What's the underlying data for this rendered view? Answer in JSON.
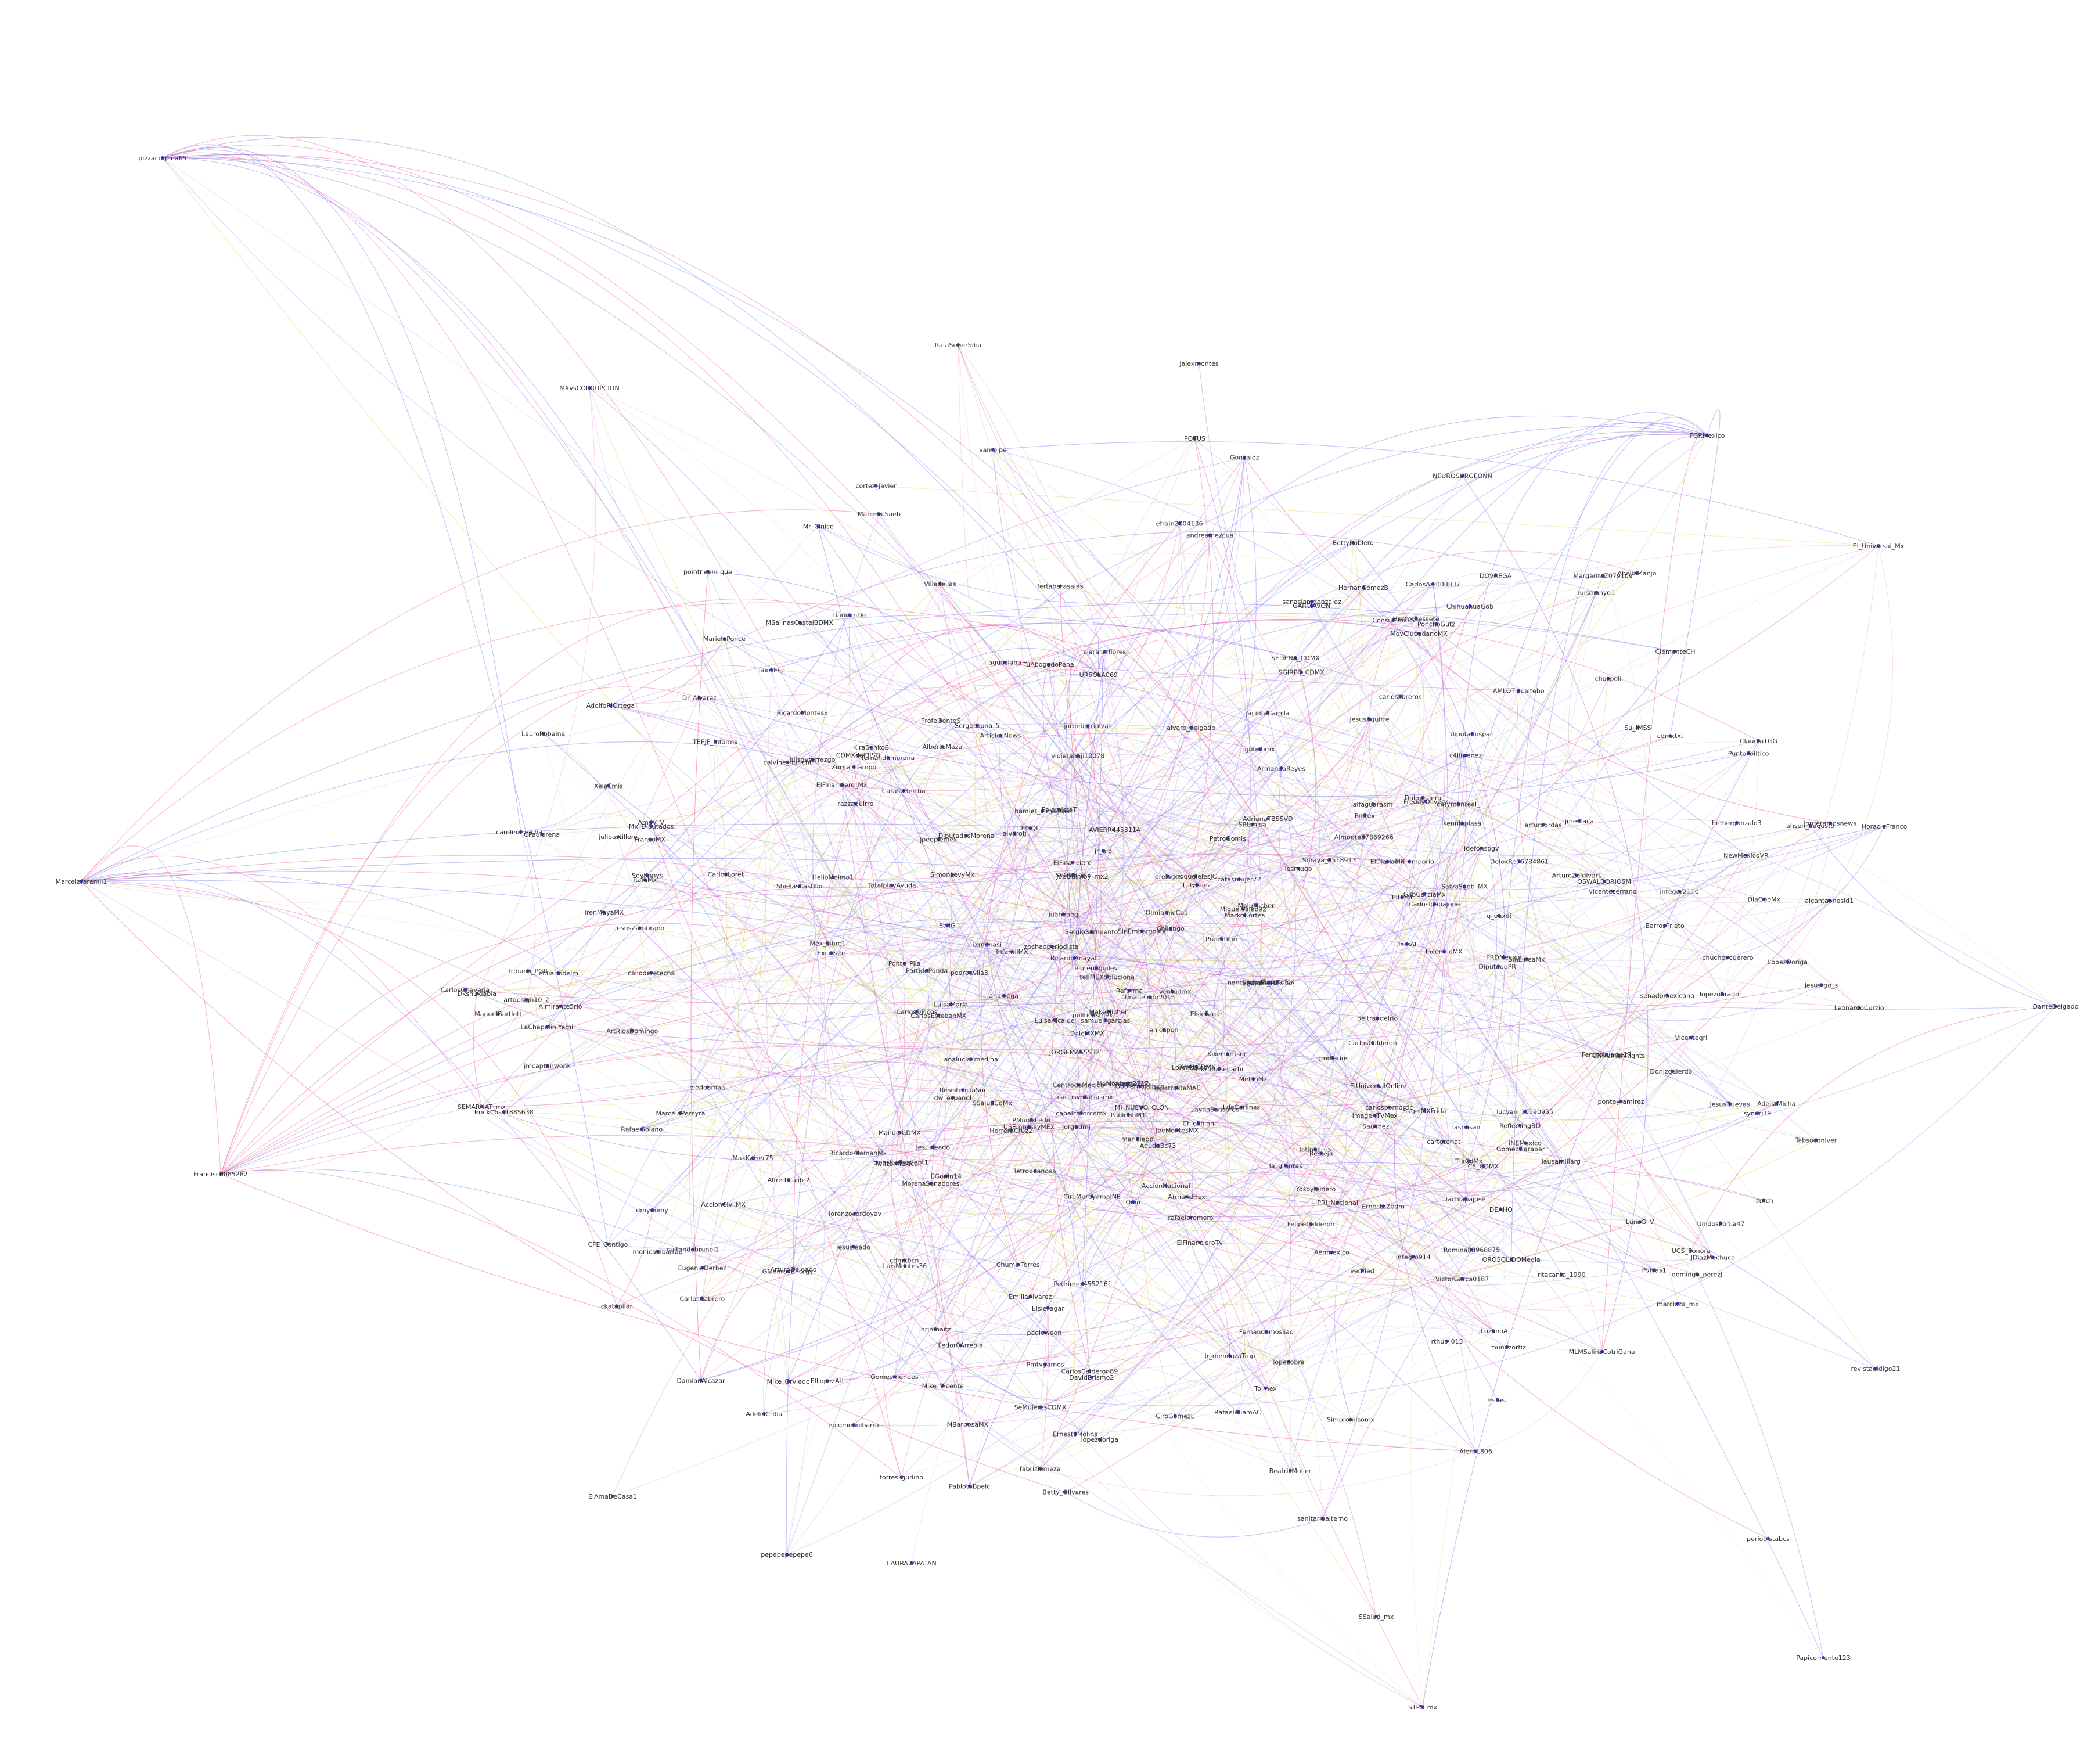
{
  "network": {
    "colors": {
      "node": "#3a3aa8",
      "label": "#333333",
      "edge_blue": "#7b7bf0",
      "edge_pink": "#ee5fa0",
      "edge_yellow": "#d9d86a",
      "edge_purple": "#b068e0",
      "edge_gray": "#c8c8e8"
    },
    "nodes": [
      "pizzacorpina65",
      "RafaSuperSiba",
      "jalexmontes",
      "MXvsCORRUPCION",
      "Donizquierdo_",
      "hemergonzalo3",
      "sultandebrunei1",
      "FGRMexico",
      "HectorBessete",
      "lachiapajose",
      "enicapon",
      "analvega",
      "ArturoZaldivarL",
      "la_grantas",
      "AgudeBc73",
      "ElFinancieroTv",
      "SEGOB_mx",
      "efrain2004136",
      "DeloxRe56734861",
      "ckatapilar",
      "Resteja",
      "vampipe",
      "hamlet_almaguer",
      "JORGEMA55532111",
      "MaxKaiser75",
      "PMunizLedo",
      "AlfredoJalife2",
      "CarasoBertha",
      "CiroGomezL",
      "jorgeberriolvas",
      "MorenaSenadores",
      "ritacanta_1990",
      "lorelagos",
      "ManuelBartlett",
      "jesusleado",
      "El_Universal_Mx",
      "FelipeCalderon",
      "Aenmexico",
      "g_oaxdi",
      "OlmiamicCo1",
      "latinus_us",
      "JDiazMechuca",
      "andreamezcua",
      "alcantaonesid1",
      "CarlosLoret",
      "LeonardoCurzio",
      "SeMujeresCDMX",
      "Yosoyleinero",
      "verified",
      "mariolepp",
      "AmaV_V",
      "Idefonsogv",
      "HelioMolmo1",
      "Villadelias",
      "chuchovcuerero",
      "CarlosCalderon89",
      "Lillytelez",
      "NEUROSURGEONN",
      "EmiliaAlvarez",
      "jesusrgo_s",
      "CarlosDPicos",
      "Alerb1806",
      "ShielasCastillo",
      "JoeQuimby_mx2",
      "CiroMurayamaINE",
      "tinadeleon2015",
      "Soraya_8518913",
      "TroquelelesJC",
      "UR5OLA069",
      "OSWALDORIOSM",
      "Romina83968875",
      "MarkoCortes",
      "TEPJF_informa",
      "Tribuno_PGR",
      "Fernandomosliao",
      "rthus_013",
      "DEAHQ",
      "zochaoperiodista",
      "fertaberasalas",
      "calvine_nuricht",
      "RepatrostaMAE",
      "lasnasan",
      "HerreraCruz2",
      "epigmenoibarra",
      "XelaEmis",
      "ClementeCH",
      "MovCiudadanoMX",
      "violetanaji10078",
      "eledeamaa",
      "Gonzalez",
      "lesmugo",
      "c4jimenez",
      "carolina_rocha_",
      "aladin_emporio",
      "ErickCoss1885638",
      "Pmtex",
      "samuel_garcias",
      "jmcaptanwonk",
      "kenniaplasa",
      "vicenteserrano",
      "lorenzocordovav",
      "Tabsoconiver",
      "JAVIERR4453114",
      "rafaeloromero",
      "juanbaeq",
      "MargaritaZ079109",
      "SRtanisa",
      "arturoordas",
      "MI_NUEVO_CLON",
      "ChumelTorres",
      "SinLineaMx",
      "lausamiliarg",
      "DiputadosMorena",
      "Dolmeajero",
      "AdeliaMicha",
      "OROSOLIDOMedia",
      "CFE_Contigo",
      "ixmunasi",
      "PetroGomis",
      "Estasi",
      "Mex_Libre1",
      "BarrosPrieto",
      "Excelsior",
      "integer2110",
      "claraluzflores",
      "alvaro_delgado",
      "transitaCastlopt1",
      "JLozanoA",
      "MakeMicher",
      "artdesign10_2",
      "alfaguarasm",
      "Marcelafaramil1",
      "letrobeanosa",
      "catasmujer72",
      "USEmbassyMEX",
      "INEMexico",
      "ArmandHex",
      "jorgedmj",
      "AccionNacional",
      "GilbGarciaMx",
      "LaChapulin Yemil",
      "LopezDoriga",
      "Sauchez",
      "POTUS",
      "synuri19",
      "CentrodeMexico",
      "Pvivas1",
      "nancy_contra",
      "Su_IMSS",
      "KikeGarrison",
      "lucyan_10190955",
      "OVIALCDMX",
      "Zurita_Campo",
      "PablotoBpelc",
      "Carlosloapajone",
      "chuzpoli",
      "MaluMicher",
      "EGonin14",
      "jorgeramosnews",
      "Pedrimex4552161",
      "ErnestoZedm",
      "HoracioFranco",
      "jr_blo",
      "lopezobra",
      "GMonroyEnergy",
      "PRDMexico",
      "RicardoAlemanMx",
      "fernandamorona",
      "SEMARNAT_mx",
      "RafaMx",
      "Tolmex",
      "torres_gudino",
      "ChicShion",
      "politicasmex",
      "senadomexicano",
      "Vicentefox",
      "Quin",
      "ClaudiaTGG",
      "ahsen_augusto",
      "EugenioDerbez",
      "LorenzoTen",
      "UNHumanRights",
      "UCS_Sonora",
      "DOVREGA",
      "SEDENA_CDMX",
      "ResistenciaSur",
      "Marcelo.Saeb",
      "CarlosAl1008837",
      "MiguelValep92",
      "CPaulorena",
      "AlmonteS7869266",
      "fabriziomeza",
      "ArticlesNews",
      "jpeoplemex",
      "PuntoPolitico",
      "Dr_Alvarez",
      "ElDAM",
      "domingo_perezJ",
      "dmyunmy",
      "ReflectingBD",
      "ProfeGenteS",
      "RicardoAnayaC",
      "Sergeasuna_5",
      "luisguterrezgo",
      "BeatrizMuller",
      "monicaalbarrad",
      "Mr_Cinico",
      "TrenMayaMX",
      "lopezobrador_",
      "Monicao2717",
      "FrancoMX",
      "AbeliaManjo",
      "carteteriat",
      "ponteyramirez",
      "razzaguirre",
      "lorinmaitz",
      "Gomesmendes",
      "eldiariodelm",
      "Vicentegrl",
      "SimonLevyMx",
      "ElsieFagar",
      "LuisaMaria",
      "AlbertoMaza",
      "SoyKnnys",
      "Pradahcin",
      "VictorGarca0187",
      "ElSQL",
      "LdaCarlinas",
      "AdeliaCriba",
      "dw_espanol",
      "diputadospan",
      "ElFinanciero_Mx",
      "analucia_medina",
      "telIMEXSoluciona",
      "SalvaSgob_MX",
      "TaiosEsp",
      "carloslibreros",
      "pointneenrique",
      "RafaelAliamAC",
      "PaoloBhM1",
      "ArtRiosDomingo",
      "ArturoDelgado",
      "CarlosCabrero",
      "Pmtvgamos",
      "ElDiarioMX",
      "LauroRobaina",
      "PRI_Nacional",
      "LAURA2APATAN",
      "jesusleado",
      "pepepepepepe6",
      "ElAmaDeCasa1",
      "luismanyo1",
      "CDMXdelBISO",
      "SinEmbargoMX",
      "JacintaCamila",
      "Francisc0085282",
      "cdmxbcn",
      "FreddyOlivery",
      "ElsieFagar",
      "GomezGarabar",
      "CarlosEstebanMX",
      "HernanGomezB",
      "revistaeldigo21",
      "periodistabcs",
      "Papicorriente123",
      "STPS_mx",
      "SSalud_mx",
      "GobiernoJalisco",
      "TlaCdMx",
      "beltraadelrio",
      "catymonreal_",
      "Betty_Olivares",
      "FerchoLuarte17",
      "canalcatorcemx",
      "LaydaSansores",
      "carlosvmaciasmx",
      "JesusAquirre",
      "MelonMx",
      "SaliG",
      "NewMexicoVR",
      "MSalinasCastelBDMX",
      "jr_mendozaTrop",
      "LuisMontes36",
      "PolemistaT",
      "DiputadoPRI",
      "PonchoGutz",
      "GARCIAVON",
      "ManifestoMexico",
      "JesusCuevas",
      "sanitarioalterno",
      "DanteDelgado",
      "Almirante5rio",
      "jmestaca",
      "MarielaPonce",
      "Fedor0Arreola",
      "aguaziana",
      "Ponte_Pila",
      "TotalplayAyuda",
      "carlospornortic",
      "RaniamDe",
      "TarsAl",
      "julioastillero",
      "ElLopezAtl",
      "MarcelaPereyra",
      "lemon_Mexico",
      "InfantilMX",
      "JoeMontesMX",
      "AdrianaTBSSVD",
      "DavidBrismo2",
      "TwitterMexico",
      "SagelMXFrida",
      "cdmxtxt",
      "Chilango",
      "paoloweon",
      "Mx_Diputados",
      "PartidoPonda",
      "lzorch",
      "gobnbmx",
      "CarlosCalderon",
      "SergioSarmiento",
      "calloderetecha",
      "CarlosGhaveria",
      "lopezdoriga",
      "TuAbogadoPena",
      "Simpromisomx",
      "ChihuahuaGob",
      "ElFinanciero",
      "cortez_javier",
      "PedroFerriz",
      "juventudmx",
      "JesusZambrano",
      "DaleMXMX",
      "ArmandoReyes",
      "ConsuelMxLS",
      "FluroBasebarbi",
      "RicardoMontesx",
      "ErnestoMolina",
      "UnidosPorLa47",
      "C5_CDMX",
      "ImagenTVMex",
      "LuisaAlcalde",
      "LunaGilV",
      "AdolfoRiOrtega",
      "DamianAlcazar",
      "Dkshukiabla",
      "RafaelSolano",
      "ManuelCDMX",
      "IncendioMX",
      "SSaludCdMx",
      "BettyRoblero",
      "sanasiamgonzalez",
      "gmdiarios",
      "alvarofj",
      "integro914",
      "AccionCivilMX",
      "elotenaguilev",
      "marcloza_mx",
      "MLMSalinaCotriGana",
      "DiaGobMx",
      "lmunezortiz",
      "pedroavila3",
      "MBarbosaMX",
      "AMLOTlacaltebo",
      "KiraSenkoB",
      "Mike_Orviedo",
      "Mike_Vicente",
      "SGIRPC_CDMX",
      "Reforma",
      "ElUniversalOnline"
    ]
  }
}
